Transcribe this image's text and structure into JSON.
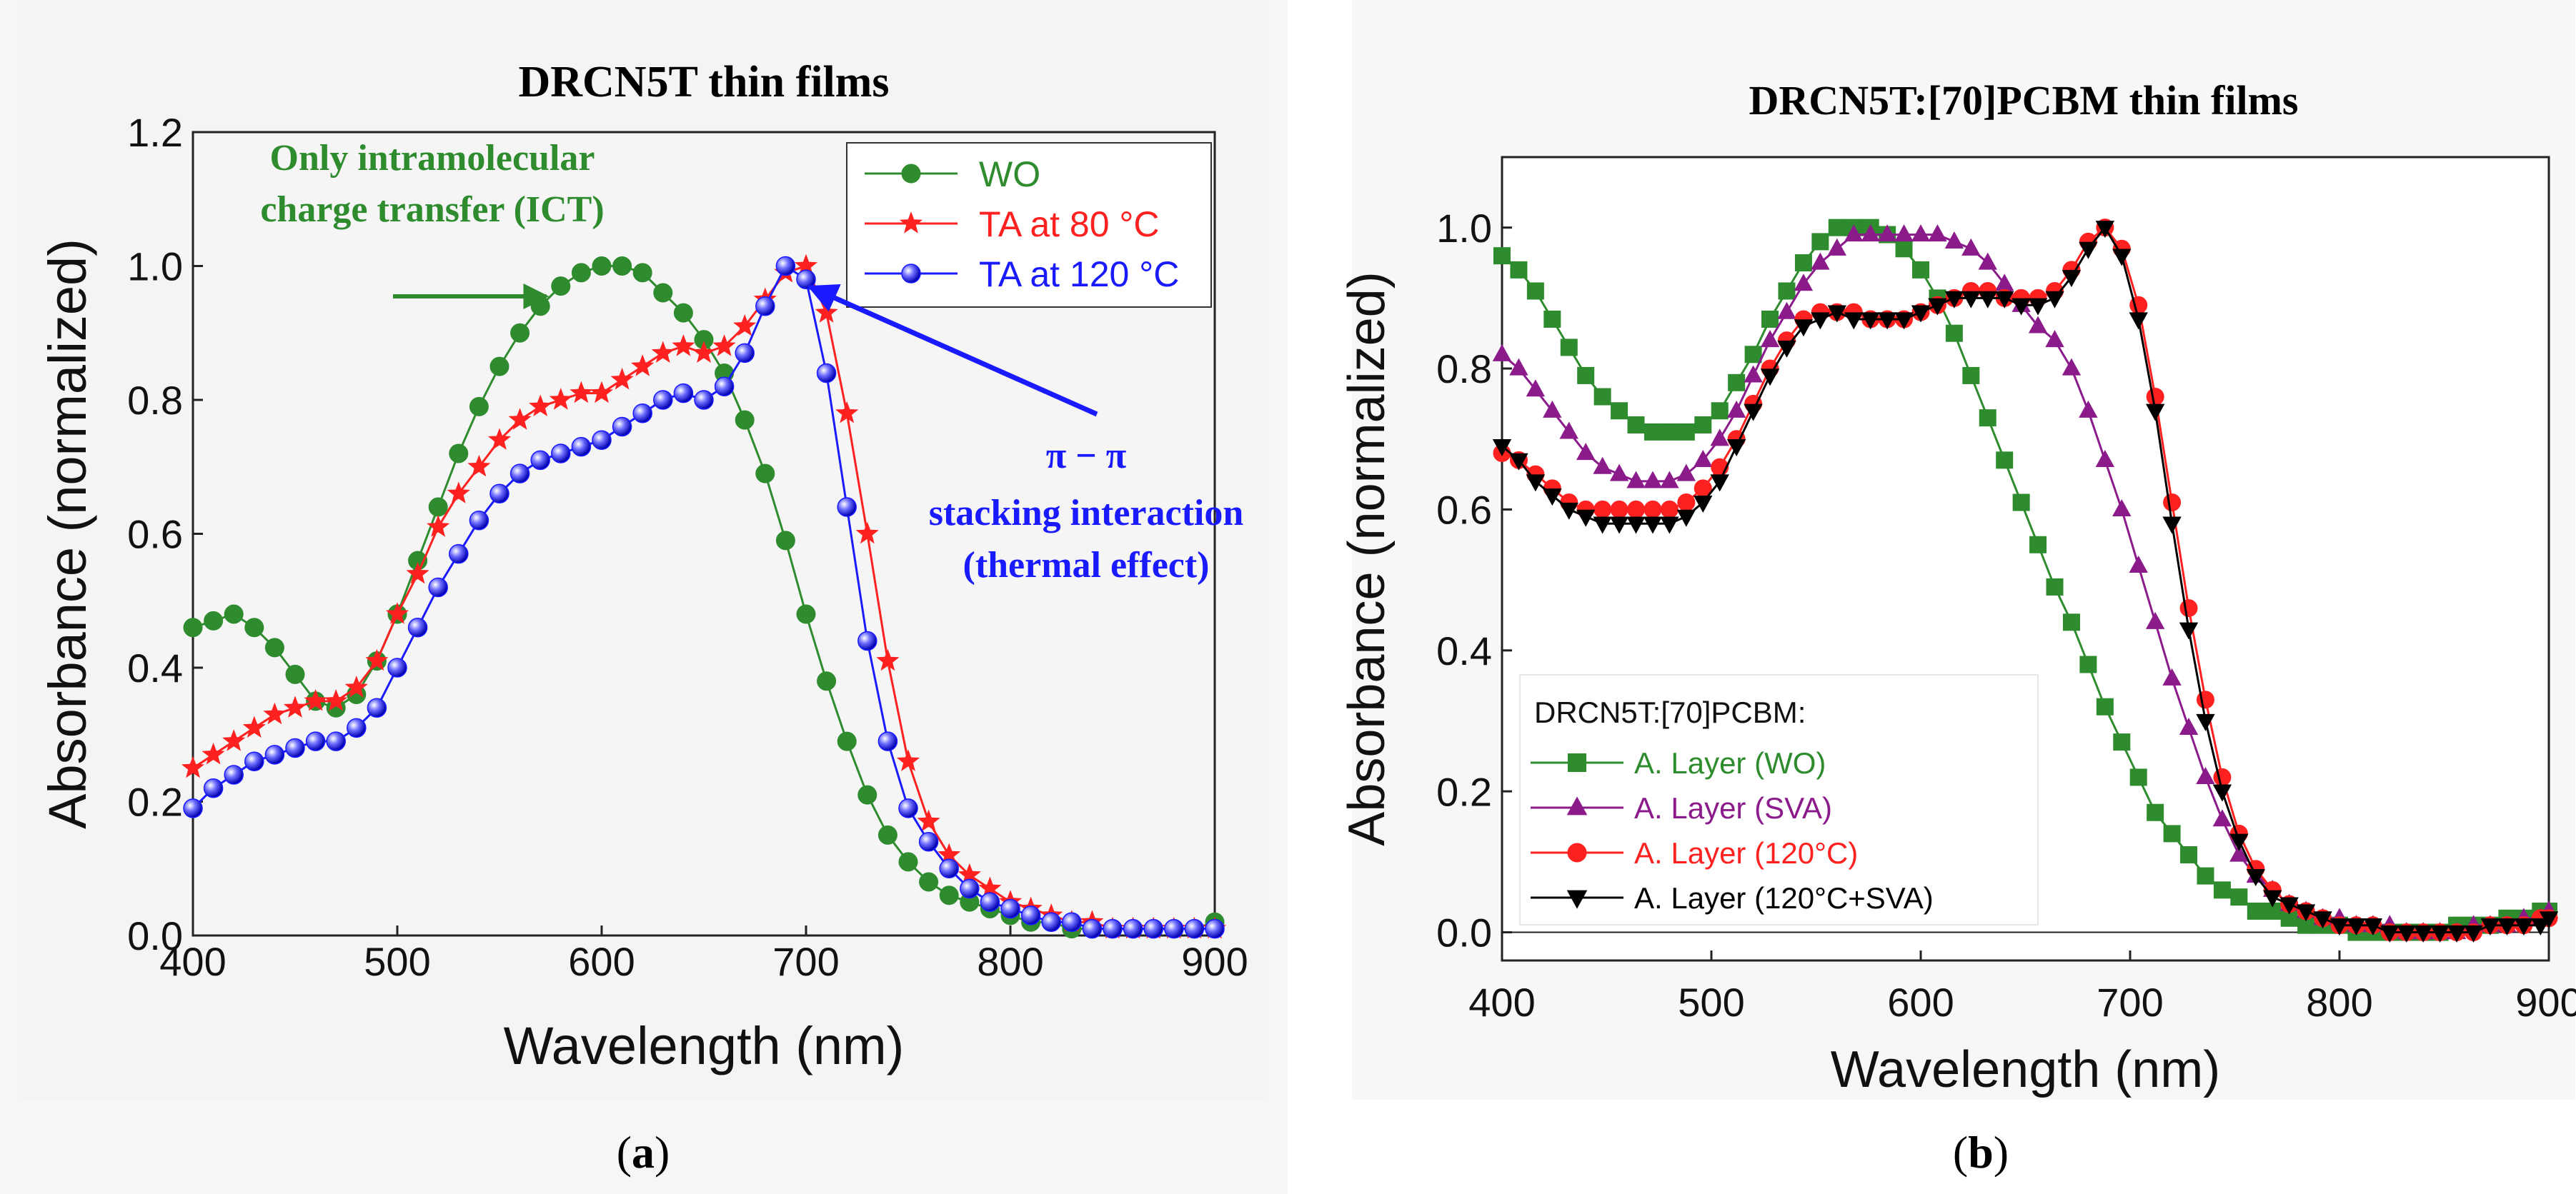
{
  "colors": {
    "green": "#2e8b2e",
    "red": "#ff2020",
    "blue": "#1a1aff",
    "purple": "#8b1a8b",
    "black": "#000000"
  },
  "chart_data": [
    {
      "id": "a",
      "type": "line",
      "title": "DRCN5T thin films",
      "panel_label_open": "(",
      "panel_label": "a",
      "panel_label_close": ")",
      "xlabel": "Wavelength (nm)",
      "ylabel": "Absorbance (normalized)",
      "xlim": [
        400,
        900
      ],
      "ylim": [
        0,
        1.2
      ],
      "xticks": [
        "400",
        "500",
        "600",
        "700",
        "800",
        "900"
      ],
      "yticks": [
        "0.0",
        "0.2",
        "0.4",
        "0.6",
        "0.8",
        "1.0",
        "1.2"
      ],
      "legend_title": "",
      "legend_position": "top-right",
      "series": [
        {
          "name": "WO",
          "color": "#2e8b2e",
          "marker": "circle",
          "x": [
            400,
            410,
            420,
            430,
            440,
            450,
            460,
            470,
            480,
            490,
            500,
            510,
            520,
            530,
            540,
            550,
            560,
            570,
            580,
            590,
            600,
            610,
            620,
            630,
            640,
            650,
            660,
            670,
            680,
            690,
            700,
            710,
            720,
            730,
            740,
            750,
            760,
            770,
            780,
            790,
            800,
            810,
            820,
            830,
            840,
            850,
            860,
            870,
            880,
            890,
            900
          ],
          "y": [
            0.46,
            0.47,
            0.48,
            0.46,
            0.43,
            0.39,
            0.35,
            0.34,
            0.36,
            0.41,
            0.48,
            0.56,
            0.64,
            0.72,
            0.79,
            0.85,
            0.9,
            0.94,
            0.97,
            0.99,
            1.0,
            1.0,
            0.99,
            0.96,
            0.93,
            0.89,
            0.84,
            0.77,
            0.69,
            0.59,
            0.48,
            0.38,
            0.29,
            0.21,
            0.15,
            0.11,
            0.08,
            0.06,
            0.05,
            0.04,
            0.03,
            0.02,
            0.02,
            0.01,
            0.01,
            0.01,
            0.01,
            0.01,
            0.01,
            0.01,
            0.02
          ]
        },
        {
          "name": "TA at 80 °C",
          "color": "#ff2020",
          "marker": "star",
          "x": [
            400,
            410,
            420,
            430,
            440,
            450,
            460,
            470,
            480,
            490,
            500,
            510,
            520,
            530,
            540,
            550,
            560,
            570,
            580,
            590,
            600,
            610,
            620,
            630,
            640,
            650,
            660,
            670,
            680,
            690,
            700,
            710,
            720,
            730,
            740,
            750,
            760,
            770,
            780,
            790,
            800,
            810,
            820,
            830,
            840,
            850,
            860,
            870,
            880,
            890,
            900
          ],
          "y": [
            0.25,
            0.27,
            0.29,
            0.31,
            0.33,
            0.34,
            0.35,
            0.35,
            0.37,
            0.41,
            0.48,
            0.54,
            0.61,
            0.66,
            0.7,
            0.74,
            0.77,
            0.79,
            0.8,
            0.81,
            0.81,
            0.83,
            0.85,
            0.87,
            0.88,
            0.87,
            0.88,
            0.91,
            0.95,
            0.99,
            1.0,
            0.93,
            0.78,
            0.6,
            0.41,
            0.26,
            0.17,
            0.12,
            0.09,
            0.07,
            0.05,
            0.04,
            0.03,
            0.02,
            0.02,
            0.01,
            0.01,
            0.01,
            0.01,
            0.01,
            0.01
          ]
        },
        {
          "name": "TA at 120 °C",
          "color": "#1a1aff",
          "marker": "sphere",
          "x": [
            400,
            410,
            420,
            430,
            440,
            450,
            460,
            470,
            480,
            490,
            500,
            510,
            520,
            530,
            540,
            550,
            560,
            570,
            580,
            590,
            600,
            610,
            620,
            630,
            640,
            650,
            660,
            670,
            680,
            690,
            700,
            710,
            720,
            730,
            740,
            750,
            760,
            770,
            780,
            790,
            800,
            810,
            820,
            830,
            840,
            850,
            860,
            870,
            880,
            890,
            900
          ],
          "y": [
            0.19,
            0.22,
            0.24,
            0.26,
            0.27,
            0.28,
            0.29,
            0.29,
            0.31,
            0.34,
            0.4,
            0.46,
            0.52,
            0.57,
            0.62,
            0.66,
            0.69,
            0.71,
            0.72,
            0.73,
            0.74,
            0.76,
            0.78,
            0.8,
            0.81,
            0.8,
            0.82,
            0.87,
            0.94,
            1.0,
            0.98,
            0.84,
            0.64,
            0.44,
            0.29,
            0.19,
            0.14,
            0.1,
            0.07,
            0.05,
            0.04,
            0.03,
            0.02,
            0.02,
            0.01,
            0.01,
            0.01,
            0.01,
            0.01,
            0.01,
            0.01
          ]
        }
      ],
      "annotations": [
        {
          "id": "ict",
          "lines": [
            "Only intramolecular",
            "charge transfer (ICT)"
          ],
          "color": "#2e8b2e",
          "arrow_to": [
            580,
            1.0
          ]
        },
        {
          "id": "pipi",
          "lines": [
            "π − π",
            "stacking interaction",
            "(thermal effect)"
          ],
          "color": "#1a1aff",
          "arrow_to": [
            695,
            0.99
          ]
        }
      ]
    },
    {
      "id": "b",
      "type": "line",
      "title": "DRCN5T:[70]PCBM thin films",
      "panel_label_open": "(",
      "panel_label": "b",
      "panel_label_close": ")",
      "xlabel": "Wavelength (nm)",
      "ylabel": "Absorbance (normalized)",
      "xlim": [
        400,
        900
      ],
      "ylim": [
        -0.04,
        1.1
      ],
      "xticks": [
        "400",
        "500",
        "600",
        "700",
        "800",
        "900"
      ],
      "yticks": [
        "0.0",
        "0.2",
        "0.4",
        "0.6",
        "0.8",
        "1.0"
      ],
      "legend_title": "DRCN5T:[70]PCBM:",
      "legend_position": "bottom-left",
      "series": [
        {
          "name": "A. Layer (WO)",
          "color": "#2e8b2e",
          "marker": "square",
          "x": [
            400,
            408,
            416,
            424,
            432,
            440,
            448,
            456,
            464,
            472,
            480,
            488,
            496,
            504,
            512,
            520,
            528,
            536,
            544,
            552,
            560,
            568,
            576,
            584,
            592,
            600,
            608,
            616,
            624,
            632,
            640,
            648,
            656,
            664,
            672,
            680,
            688,
            696,
            704,
            712,
            720,
            728,
            736,
            744,
            752,
            760,
            768,
            776,
            784,
            792,
            800,
            808,
            816,
            824,
            832,
            840,
            848,
            856,
            864,
            872,
            880,
            888,
            896,
            900
          ],
          "y": [
            0.96,
            0.94,
            0.91,
            0.87,
            0.83,
            0.79,
            0.76,
            0.74,
            0.72,
            0.71,
            0.71,
            0.71,
            0.72,
            0.74,
            0.78,
            0.82,
            0.87,
            0.91,
            0.95,
            0.98,
            1.0,
            1.0,
            1.0,
            0.99,
            0.97,
            0.94,
            0.9,
            0.85,
            0.79,
            0.73,
            0.67,
            0.61,
            0.55,
            0.49,
            0.44,
            0.38,
            0.32,
            0.27,
            0.22,
            0.17,
            0.14,
            0.11,
            0.08,
            0.06,
            0.05,
            0.03,
            0.03,
            0.02,
            0.01,
            0.01,
            0.01,
            0.0,
            0.0,
            0.0,
            0.0,
            0.0,
            0.0,
            0.01,
            0.01,
            0.01,
            0.02,
            0.02,
            0.03,
            0.03
          ]
        },
        {
          "name": "A. Layer (SVA)",
          "color": "#8b1a8b",
          "marker": "triangle-up",
          "x": [
            400,
            408,
            416,
            424,
            432,
            440,
            448,
            456,
            464,
            472,
            480,
            488,
            496,
            504,
            512,
            520,
            528,
            536,
            544,
            552,
            560,
            568,
            576,
            584,
            592,
            600,
            608,
            616,
            624,
            632,
            640,
            648,
            656,
            664,
            672,
            680,
            688,
            696,
            704,
            712,
            720,
            728,
            736,
            744,
            752,
            760,
            768,
            776,
            784,
            792,
            800,
            808,
            816,
            824,
            832,
            840,
            848,
            856,
            864,
            872,
            880,
            888,
            896,
            900
          ],
          "y": [
            0.82,
            0.8,
            0.77,
            0.74,
            0.71,
            0.68,
            0.66,
            0.65,
            0.64,
            0.64,
            0.64,
            0.65,
            0.67,
            0.7,
            0.74,
            0.79,
            0.84,
            0.88,
            0.92,
            0.95,
            0.97,
            0.99,
            0.99,
            0.99,
            0.99,
            0.99,
            0.99,
            0.98,
            0.97,
            0.95,
            0.92,
            0.89,
            0.86,
            0.84,
            0.8,
            0.74,
            0.67,
            0.6,
            0.52,
            0.44,
            0.36,
            0.29,
            0.22,
            0.16,
            0.11,
            0.08,
            0.06,
            0.04,
            0.03,
            0.02,
            0.02,
            0.01,
            0.01,
            0.01,
            0.0,
            0.0,
            0.0,
            0.0,
            0.01,
            0.01,
            0.01,
            0.02,
            0.02,
            0.03
          ]
        },
        {
          "name": "A. Layer (120°C)",
          "color": "#ff2020",
          "marker": "circle",
          "x": [
            400,
            408,
            416,
            424,
            432,
            440,
            448,
            456,
            464,
            472,
            480,
            488,
            496,
            504,
            512,
            520,
            528,
            536,
            544,
            552,
            560,
            568,
            576,
            584,
            592,
            600,
            608,
            616,
            624,
            632,
            640,
            648,
            656,
            664,
            672,
            680,
            688,
            696,
            704,
            712,
            720,
            728,
            736,
            744,
            752,
            760,
            768,
            776,
            784,
            792,
            800,
            808,
            816,
            824,
            832,
            840,
            848,
            856,
            864,
            872,
            880,
            888,
            896,
            900
          ],
          "y": [
            0.68,
            0.67,
            0.65,
            0.63,
            0.61,
            0.6,
            0.6,
            0.6,
            0.6,
            0.6,
            0.6,
            0.61,
            0.63,
            0.66,
            0.7,
            0.75,
            0.8,
            0.84,
            0.87,
            0.88,
            0.88,
            0.88,
            0.87,
            0.87,
            0.87,
            0.88,
            0.89,
            0.9,
            0.91,
            0.91,
            0.9,
            0.9,
            0.9,
            0.91,
            0.94,
            0.98,
            1.0,
            0.97,
            0.89,
            0.76,
            0.61,
            0.46,
            0.33,
            0.22,
            0.14,
            0.09,
            0.06,
            0.04,
            0.03,
            0.02,
            0.01,
            0.01,
            0.01,
            0.0,
            0.0,
            0.0,
            0.0,
            0.0,
            0.0,
            0.01,
            0.01,
            0.01,
            0.02,
            0.02
          ]
        },
        {
          "name": "A. Layer (120°C+SVA)",
          "color": "#000000",
          "marker": "triangle-down",
          "x": [
            400,
            408,
            416,
            424,
            432,
            440,
            448,
            456,
            464,
            472,
            480,
            488,
            496,
            504,
            512,
            520,
            528,
            536,
            544,
            552,
            560,
            568,
            576,
            584,
            592,
            600,
            608,
            616,
            624,
            632,
            640,
            648,
            656,
            664,
            672,
            680,
            688,
            696,
            704,
            712,
            720,
            728,
            736,
            744,
            752,
            760,
            768,
            776,
            784,
            792,
            800,
            808,
            816,
            824,
            832,
            840,
            848,
            856,
            864,
            872,
            880,
            888,
            896,
            900
          ],
          "y": [
            0.69,
            0.67,
            0.64,
            0.62,
            0.6,
            0.59,
            0.58,
            0.58,
            0.58,
            0.58,
            0.58,
            0.59,
            0.61,
            0.64,
            0.69,
            0.74,
            0.79,
            0.83,
            0.86,
            0.87,
            0.88,
            0.87,
            0.87,
            0.87,
            0.87,
            0.88,
            0.89,
            0.9,
            0.9,
            0.9,
            0.9,
            0.89,
            0.89,
            0.9,
            0.93,
            0.97,
            1.0,
            0.96,
            0.87,
            0.74,
            0.58,
            0.43,
            0.3,
            0.2,
            0.13,
            0.08,
            0.05,
            0.04,
            0.03,
            0.02,
            0.01,
            0.01,
            0.01,
            0.0,
            0.0,
            0.0,
            0.0,
            0.0,
            0.0,
            0.01,
            0.01,
            0.01,
            0.01,
            0.02
          ]
        }
      ]
    }
  ]
}
